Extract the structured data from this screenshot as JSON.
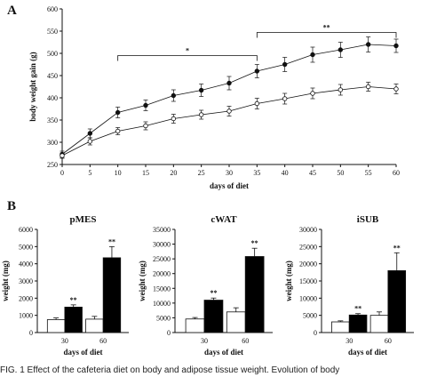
{
  "panel_labels": [
    "A",
    "B"
  ],
  "caption": "FIG. 1  Effect of the cafeteria diet on body and adipose tissue weight. Evolution of body",
  "colors": {
    "control_fill": "#ffffff",
    "cafeteria_fill": "#000000",
    "ink": "#111111"
  },
  "chart_data": [
    {
      "type": "line",
      "xlabel": "days of diet",
      "ylabel": "body weight gain (g)",
      "xticks": [
        0,
        5,
        10,
        15,
        20,
        25,
        30,
        35,
        40,
        45,
        50,
        55,
        60
      ],
      "yticks": [
        250,
        300,
        350,
        400,
        450,
        500,
        550,
        600
      ],
      "xlim": [
        0,
        60
      ],
      "ylim": [
        250,
        600
      ],
      "x": [
        0,
        5,
        10,
        15,
        20,
        25,
        30,
        35,
        40,
        45,
        50,
        55,
        60
      ],
      "series": [
        {
          "marker": "filled-circle",
          "values": [
            273,
            320,
            367,
            383,
            405,
            417,
            433,
            460,
            475,
            497,
            508,
            520,
            517
          ],
          "errors": [
            7,
            10,
            12,
            12,
            13,
            14,
            15,
            15,
            16,
            17,
            17,
            17,
            15
          ]
        },
        {
          "marker": "open-circle",
          "values": [
            270,
            302,
            325,
            337,
            353,
            362,
            370,
            387,
            398,
            410,
            418,
            425,
            420
          ],
          "errors": [
            6,
            8,
            8,
            9,
            10,
            10,
            11,
            12,
            12,
            12,
            12,
            10,
            11
          ]
        }
      ],
      "annotations": [
        {
          "text": "*",
          "x_from": 10,
          "x_to": 35
        },
        {
          "text": "**",
          "x_from": 35,
          "x_to": 60
        }
      ]
    },
    {
      "type": "bar",
      "title": "pMES",
      "xlabel": "days of diet",
      "ylabel": "weight (mg)",
      "categories": [
        "30",
        "60"
      ],
      "ylim": [
        0,
        6000
      ],
      "yticks": [
        0,
        1000,
        2000,
        3000,
        4000,
        5000,
        6000
      ],
      "series": [
        {
          "color": "#ffffff",
          "values": [
            750,
            780
          ],
          "errors": [
            100,
            160
          ]
        },
        {
          "color": "#000000",
          "values": [
            1480,
            4350
          ],
          "errors": [
            130,
            650
          ]
        }
      ],
      "annotations": [
        "**",
        "**"
      ]
    },
    {
      "type": "bar",
      "title": "cWAT",
      "xlabel": "days of diet",
      "ylabel": "weight (mg)",
      "categories": [
        "30",
        "60"
      ],
      "ylim": [
        0,
        35000
      ],
      "yticks": [
        0,
        5000,
        10000,
        15000,
        20000,
        25000,
        30000,
        35000
      ],
      "series": [
        {
          "color": "#ffffff",
          "values": [
            4600,
            7000
          ],
          "errors": [
            500,
            1400
          ]
        },
        {
          "color": "#000000",
          "values": [
            11000,
            25800
          ],
          "errors": [
            700,
            2800
          ]
        }
      ],
      "annotations": [
        "**",
        "**"
      ]
    },
    {
      "type": "bar",
      "title": "iSUB",
      "xlabel": "days of diet",
      "ylabel": "weight (mg)",
      "categories": [
        "30",
        "60"
      ],
      "ylim": [
        0,
        30000
      ],
      "yticks": [
        0,
        5000,
        10000,
        15000,
        20000,
        25000,
        30000
      ],
      "series": [
        {
          "color": "#ffffff",
          "values": [
            3100,
            5000
          ],
          "errors": [
            300,
            1000
          ]
        },
        {
          "color": "#000000",
          "values": [
            5100,
            18000
          ],
          "errors": [
            400,
            5200
          ]
        }
      ],
      "annotations": [
        "**",
        "**"
      ]
    }
  ]
}
